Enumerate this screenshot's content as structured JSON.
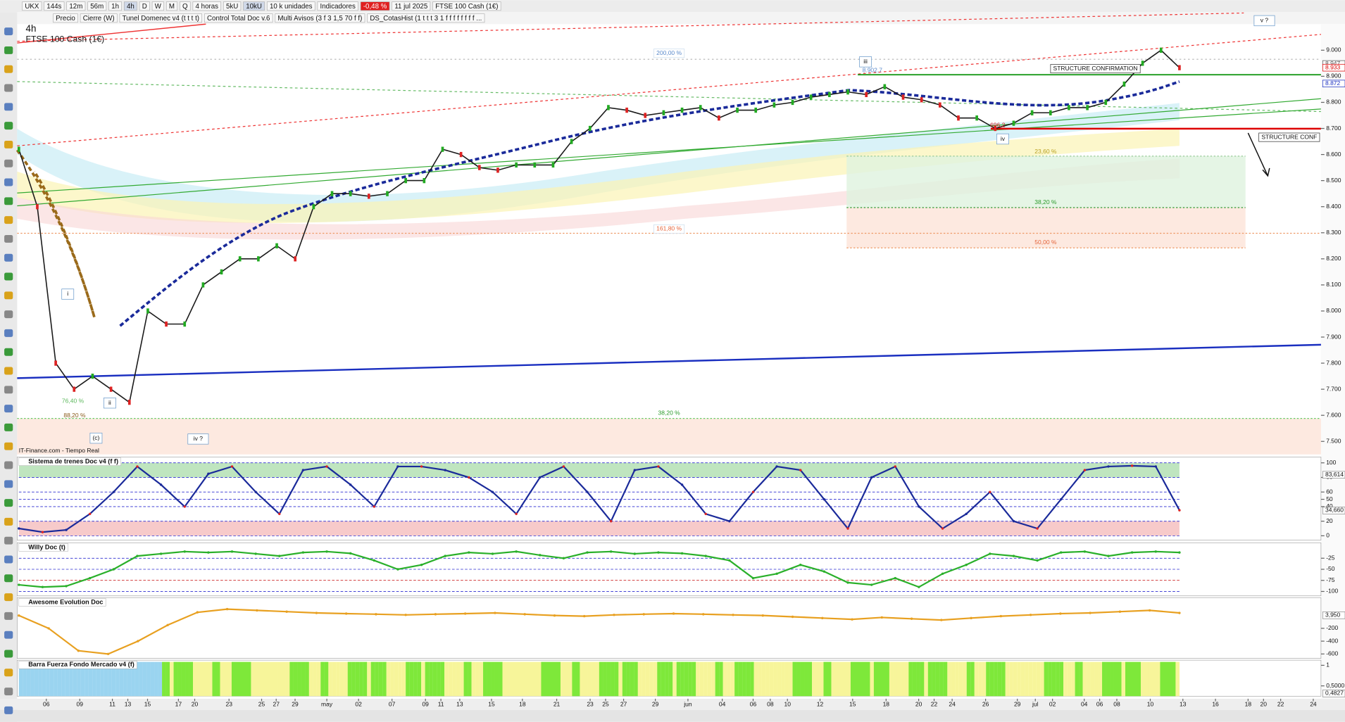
{
  "toolbar": {
    "symbol": "UKX",
    "intervals": [
      "144s",
      "12m",
      "56m",
      "1h",
      "4h",
      "D",
      "W",
      "M",
      "Q"
    ],
    "period": "4 horas",
    "units": [
      "5kU",
      "10kU"
    ],
    "unit_select": "10 k unidades",
    "indicators": "Indicadores",
    "change": "-0,48 %",
    "date": "11 jul 2025",
    "instrument": "FTSE 100 Cash (1€)"
  },
  "legend_bar": {
    "items": [
      "Precio",
      "Cierre (W)",
      "Tunel Domenec v4 (t t t t)",
      "Control Total Doc v.6",
      "Multi Avisos (3 f 3 1,5 70 f f)",
      "DS_CotasHist (1 t t t 3 1 f f f f f f f f ..."
    ]
  },
  "main": {
    "timeframe": "4h",
    "title": "FTSE 100 Cash (1€)",
    "source": "IT-Finance.com - Tiempo Real",
    "ylim": [
      7450,
      9100
    ],
    "yticks": [
      {
        "value": 9000,
        "label": "9.000"
      },
      {
        "value": 8900,
        "label": "8.900"
      },
      {
        "value": 8800,
        "label": "8.800"
      },
      {
        "value": 8700,
        "label": "8.700"
      },
      {
        "value": 8600,
        "label": "8.600"
      },
      {
        "value": 8500,
        "label": "8.500"
      },
      {
        "value": 8400,
        "label": "8.400"
      },
      {
        "value": 8300,
        "label": "8.300"
      },
      {
        "value": 8200,
        "label": "8.200"
      },
      {
        "value": 8100,
        "label": "8.100"
      },
      {
        "value": 8000,
        "label": "8.000"
      },
      {
        "value": 7900,
        "label": "7.900"
      },
      {
        "value": 7800,
        "label": "7.800"
      },
      {
        "value": 7700,
        "label": "7.700"
      },
      {
        "value": 7600,
        "label": "7.600"
      },
      {
        "value": 7500,
        "label": "7.500"
      }
    ],
    "price_tags": [
      {
        "value": 8947,
        "label": "8.947"
      },
      {
        "value": 8933,
        "label": "8.933"
      },
      {
        "value": 8872,
        "label": "8.872"
      }
    ],
    "price": [
      8620,
      8400,
      7800,
      7700,
      7750,
      7700,
      7650,
      8000,
      7950,
      7950,
      8100,
      8150,
      8200,
      8200,
      8250,
      8200,
      8400,
      8450,
      8450,
      8440,
      8450,
      8500,
      8500,
      8620,
      8600,
      8550,
      8540,
      8560,
      8560,
      8560,
      8650,
      8700,
      8780,
      8770,
      8750,
      8760,
      8770,
      8780,
      8740,
      8770,
      8770,
      8790,
      8800,
      8820,
      8830,
      8840,
      8830,
      8860,
      8820,
      8810,
      8790,
      8740,
      8740,
      8700,
      8720,
      8760,
      8760,
      8780,
      8780,
      8800,
      8870,
      8950,
      9000,
      8933
    ],
    "annotations": [
      "200,00 %",
      "161,80 %",
      "23,60 %",
      "38,20 %",
      "50,00 %",
      "38,20 %",
      "76,40 %",
      "88,20 %",
      "8.902,7",
      "696,2",
      "STRUCTURE CONFIRMATION",
      "STRUCTURE CONF"
    ],
    "waves": [
      "i",
      "ii",
      "iii",
      "iv",
      "(c)",
      "iv ?",
      "v ?"
    ]
  },
  "panels": [
    {
      "title": "Sistema de trenes Doc v4 (f f)",
      "ylim": [
        -6,
        108
      ],
      "yticks": [
        100,
        80,
        60,
        50,
        40,
        20,
        0
      ],
      "tags": [
        {
          "value": 83.614,
          "label": "83,614"
        },
        {
          "value": 34.66,
          "label": "34,660"
        }
      ],
      "values": [
        10,
        5,
        8,
        30,
        60,
        95,
        70,
        40,
        85,
        95,
        60,
        30,
        90,
        95,
        70,
        40,
        95,
        95,
        90,
        80,
        60,
        30,
        80,
        95,
        60,
        20,
        90,
        95,
        70,
        30,
        20,
        60,
        95,
        90,
        50,
        10,
        80,
        95,
        40,
        10,
        30,
        60,
        20,
        10,
        50,
        90,
        95,
        96,
        95,
        35
      ]
    },
    {
      "title": "Willy Doc (t)",
      "ylim": [
        -110,
        10
      ],
      "yticks": [
        -25,
        -50,
        -75,
        -100
      ],
      "tags": [],
      "values": [
        -85,
        -90,
        -88,
        -70,
        -50,
        -20,
        -15,
        -10,
        -12,
        -10,
        -15,
        -20,
        -12,
        -10,
        -14,
        -30,
        -50,
        -40,
        -20,
        -12,
        -15,
        -10,
        -18,
        -25,
        -12,
        -10,
        -15,
        -12,
        -14,
        -20,
        -30,
        -70,
        -60,
        -40,
        -55,
        -80,
        -85,
        -70,
        -90,
        -60,
        -40,
        -15,
        -20,
        -30,
        -12,
        -10,
        -20,
        -12,
        -10,
        -12
      ]
    },
    {
      "title": "Awesome Evolution Doc",
      "ylim": [
        -670,
        280
      ],
      "yticks": [
        -200,
        -400,
        -600
      ],
      "tags": [
        {
          "value": 3.95,
          "label": "3,950"
        }
      ],
      "values": [
        0,
        -200,
        -550,
        -600,
        -400,
        -150,
        50,
        100,
        80,
        60,
        40,
        30,
        20,
        10,
        20,
        30,
        40,
        20,
        0,
        -10,
        10,
        20,
        30,
        20,
        10,
        0,
        -20,
        -40,
        -60,
        -30,
        -50,
        -70,
        -40,
        -10,
        10,
        30,
        40,
        60,
        80,
        40
      ]
    },
    {
      "title": "Barra Fuerza Fondo Mercado v4 (f)",
      "ylim": [
        0.25,
        1.125
      ],
      "yticks": [
        1,
        {
          "value": 0.5,
          "label": "0,5000"
        }
      ],
      "tags": [
        {
          "value": 0.4827,
          "label": "0,4827"
        }
      ]
    }
  ],
  "xticks": [
    "06",
    "09",
    "11",
    "13",
    "15",
    "17",
    "20",
    "23",
    "25",
    "27",
    "29",
    "may",
    "02",
    "07",
    "09",
    "11",
    "13",
    "15",
    "18",
    "21",
    "23",
    "25",
    "27",
    "29",
    "jun",
    "04",
    "06",
    "08",
    "10",
    "12",
    "15",
    "18",
    "20",
    "22",
    "24",
    "26",
    "29",
    "jul",
    "02",
    "04",
    "06",
    "08",
    "10",
    "13",
    "16",
    "18",
    "20",
    "22",
    "24"
  ]
}
